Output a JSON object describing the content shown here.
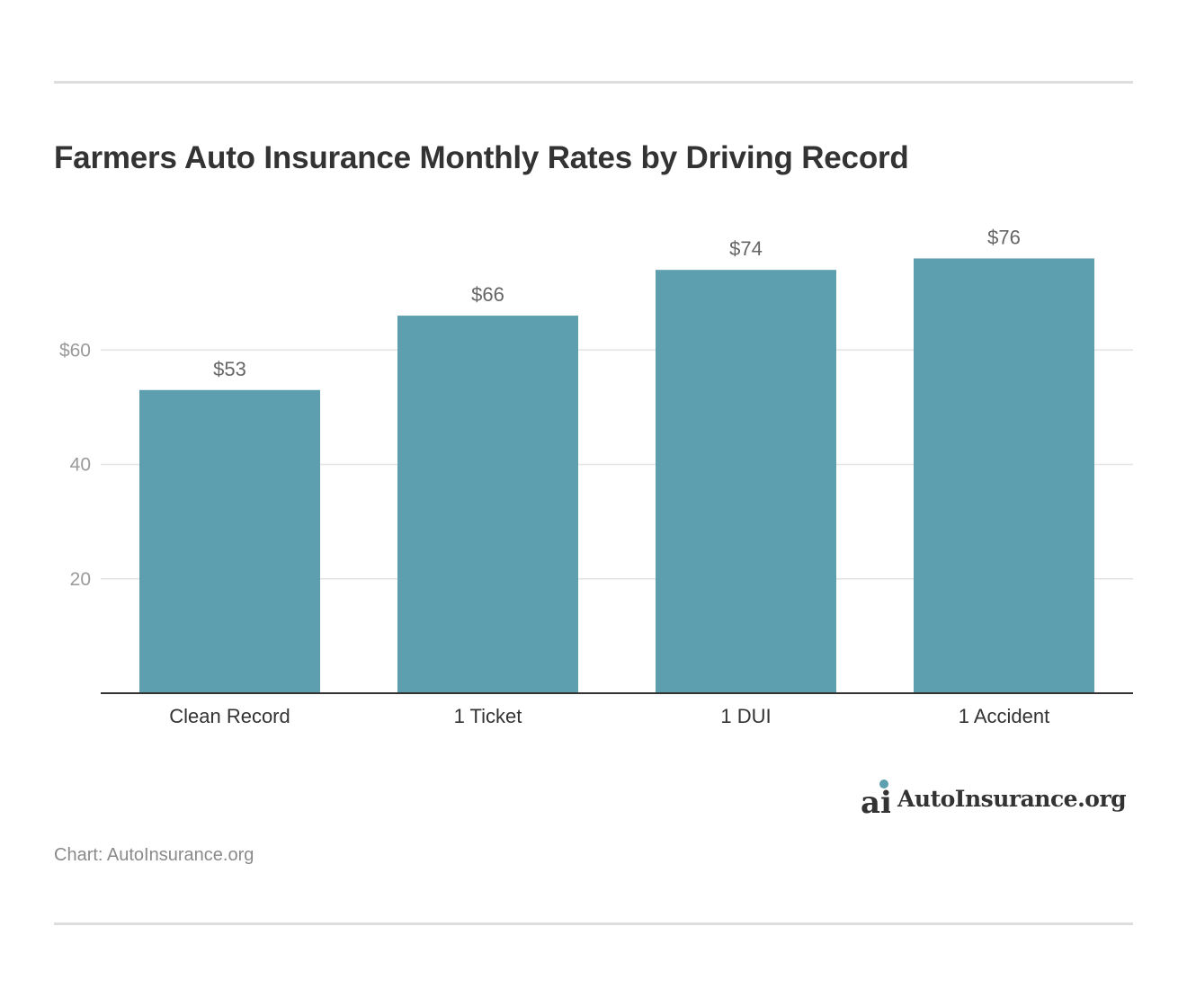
{
  "title": "Farmers Auto Insurance Monthly Rates by Driving Record",
  "source_label": "Chart: AutoInsurance.org",
  "logo": {
    "glyph": "ai",
    "text": "AutoInsurance.org",
    "icon": "autoinsurance-logo-icon"
  },
  "colors": {
    "bar": "#5d9eaf",
    "grid": "#e3e3e3",
    "axis": "#333333",
    "tick_label": "#9a9a9a",
    "category_label": "#333333",
    "value_label": "#666666",
    "logo_dot": "#5d9eaf"
  },
  "chart_data": {
    "type": "bar",
    "categories": [
      "Clean Record",
      "1 Ticket",
      "1 DUI",
      "1 Accident"
    ],
    "values": [
      53,
      66,
      74,
      76
    ],
    "value_labels": [
      "$53",
      "$66",
      "$74",
      "$76"
    ],
    "title": "Farmers Auto Insurance Monthly Rates by Driving Record",
    "xlabel": "",
    "ylabel": "",
    "ylim": [
      0,
      80
    ],
    "yticks": [
      20,
      40,
      60
    ],
    "ytick_labels": [
      "20",
      "40",
      "$60"
    ],
    "grid": true,
    "legend": "none"
  }
}
